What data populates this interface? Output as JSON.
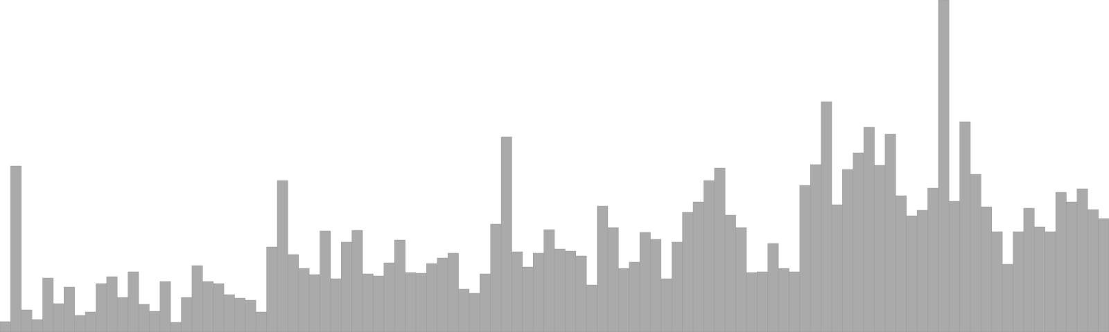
{
  "colors": {
    "bar_fill": "#aaaaaa",
    "bar_stroke": "#999999",
    "background": "#ffffff"
  },
  "chart_data": {
    "type": "bar",
    "title": "",
    "xlabel": "",
    "ylabel": "",
    "ylim": [
      0,
      480
    ],
    "grid": false,
    "legend": "none",
    "values": [
      15,
      240,
      32,
      18,
      78,
      41,
      65,
      24,
      29,
      70,
      80,
      50,
      87,
      40,
      30,
      73,
      14,
      50,
      96,
      73,
      70,
      54,
      49,
      46,
      29,
      123,
      219,
      112,
      92,
      83,
      146,
      77,
      130,
      147,
      84,
      81,
      100,
      133,
      86,
      85,
      99,
      107,
      114,
      62,
      56,
      84,
      156,
      282,
      116,
      94,
      114,
      148,
      120,
      117,
      110,
      68,
      182,
      151,
      92,
      101,
      144,
      134,
      77,
      130,
      173,
      188,
      219,
      237,
      169,
      151,
      86,
      87,
      128,
      92,
      87,
      212,
      242,
      333,
      184,
      235,
      259,
      296,
      241,
      286,
      197,
      168,
      176,
      208,
      480,
      189,
      304,
      228,
      181,
      145,
      98,
      145,
      179,
      152,
      145,
      202,
      188,
      207,
      177,
      164
    ]
  }
}
